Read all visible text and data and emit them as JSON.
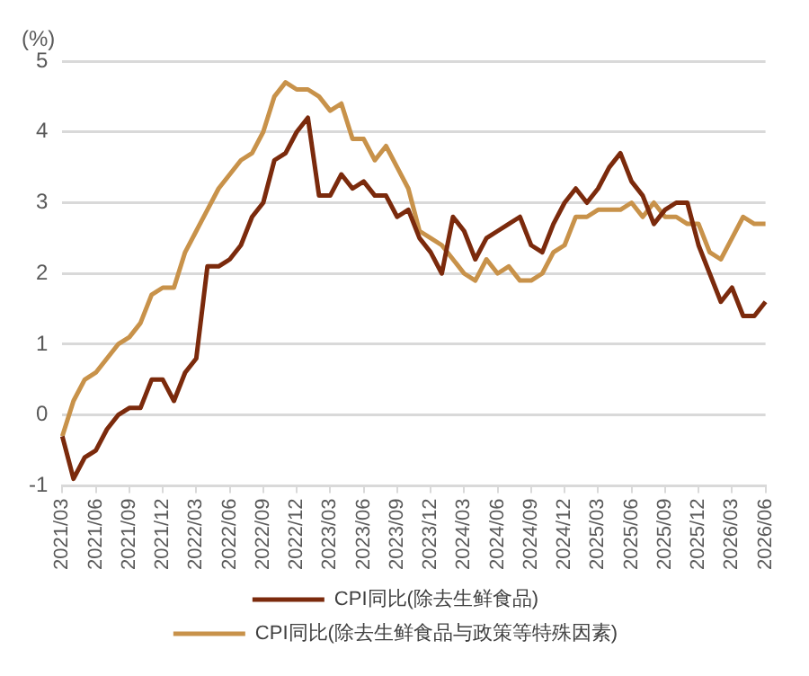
{
  "chart_data": {
    "type": "line",
    "ylabel": "(%)",
    "categories": [
      "2021/03",
      null,
      null,
      "2021/06",
      null,
      null,
      "2021/09",
      null,
      null,
      "2021/12",
      null,
      null,
      "2022/03",
      null,
      null,
      "2022/06",
      null,
      null,
      "2022/09",
      null,
      null,
      "2022/12",
      null,
      null,
      "2023/03",
      null,
      null,
      "2023/06",
      null,
      null,
      "2023/09",
      null,
      null,
      "2023/12",
      null,
      null,
      "2024/03",
      null,
      null,
      "2024/06",
      null,
      null,
      "2024/09",
      null,
      null,
      "2024/12",
      null,
      null,
      "2025/03",
      null,
      null,
      "2025/06",
      null,
      null,
      "2025/09",
      null,
      null,
      "2025/12",
      null,
      null,
      "2026/03",
      null,
      null,
      "2026/06"
    ],
    "series": [
      {
        "name": "CPI同比(除去生鲜食品)",
        "color": "#7b2a0c",
        "values": [
          -0.3,
          -0.9,
          -0.6,
          -0.5,
          -0.2,
          0.0,
          0.1,
          0.1,
          0.5,
          0.5,
          0.2,
          0.6,
          0.8,
          2.1,
          2.1,
          2.2,
          2.4,
          2.8,
          3.0,
          3.6,
          3.7,
          4.0,
          4.2,
          3.1,
          3.1,
          3.4,
          3.2,
          3.3,
          3.1,
          3.1,
          2.8,
          2.9,
          2.5,
          2.3,
          2.0,
          2.8,
          2.6,
          2.2,
          2.5,
          2.6,
          2.7,
          2.8,
          2.4,
          2.3,
          2.7,
          3.0,
          3.2,
          3.0,
          3.2,
          3.5,
          3.7,
          3.3,
          3.1,
          2.7,
          2.9,
          3.0,
          3.0,
          2.4,
          2.0,
          1.6,
          1.8,
          1.4,
          1.4,
          1.6
        ]
      },
      {
        "name": "CPI同比(除去生鲜食品与政策等特殊因素)",
        "color": "#c8924a",
        "values": [
          -0.3,
          0.2,
          0.5,
          0.6,
          0.8,
          1.0,
          1.1,
          1.3,
          1.7,
          1.8,
          1.8,
          2.3,
          2.6,
          2.9,
          3.2,
          3.4,
          3.6,
          3.7,
          4.0,
          4.5,
          4.7,
          4.6,
          4.6,
          4.5,
          4.3,
          4.4,
          3.9,
          3.9,
          3.6,
          3.8,
          3.5,
          3.2,
          2.6,
          2.5,
          2.4,
          2.2,
          2.0,
          1.9,
          2.2,
          2.0,
          2.1,
          1.9,
          1.9,
          2.0,
          2.3,
          2.4,
          2.8,
          2.8,
          2.9,
          2.9,
          2.9,
          3.0,
          2.8,
          3.0,
          2.8,
          2.8,
          2.7,
          2.7,
          2.3,
          2.2,
          2.5,
          2.8,
          2.7,
          2.7
        ]
      }
    ],
    "ylim": [
      -1,
      5
    ],
    "yticks": [
      -1,
      0,
      1,
      2,
      3,
      4,
      5
    ],
    "grid": "y",
    "legend": "bottom",
    "marker": "none",
    "line_style": "solid"
  }
}
